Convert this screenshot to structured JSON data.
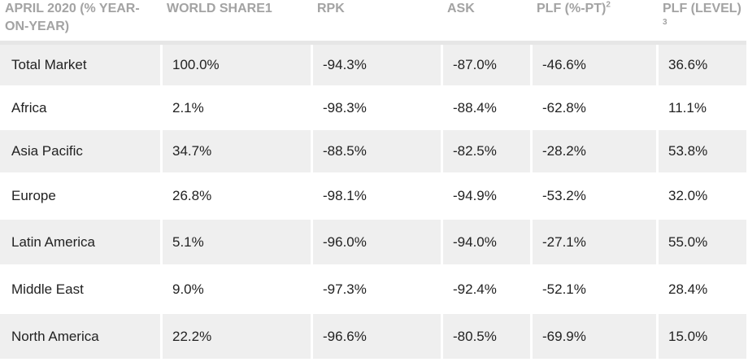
{
  "table": {
    "headers": [
      "APRIL 2020 (% YEAR-ON-YEAR)",
      "WORLD SHARE1",
      "RPK",
      "ASK",
      "PLF (%-PT)",
      "PLF (LEVEL)"
    ],
    "header_superscripts": {
      "plf_pt": "2",
      "plf_level": "3"
    },
    "rows": [
      [
        "Total Market",
        "100.0%",
        "-94.3%",
        "-87.0%",
        "-46.6%",
        "36.6%"
      ],
      [
        "Africa",
        "2.1%",
        "-98.3%",
        "-88.4%",
        "-62.8%",
        "11.1%"
      ],
      [
        "Asia Pacific",
        "34.7%",
        "-88.5%",
        "-82.5%",
        "-28.2%",
        "53.8%"
      ],
      [
        "Europe",
        "26.8%",
        "-98.1%",
        "-94.9%",
        "-53.2%",
        "32.0%"
      ],
      [
        "Latin America",
        "5.1%",
        "-96.0%",
        "-94.0%",
        "-27.1%",
        "55.0%"
      ],
      [
        "Middle East",
        "9.0%",
        "-97.3%",
        "-92.4%",
        "-52.1%",
        "28.4%"
      ],
      [
        "North America",
        "22.2%",
        "-96.6%",
        "-80.5%",
        "-69.9%",
        "15.0%"
      ]
    ]
  },
  "colors": {
    "header_text": "#a3a3a3",
    "row_shade": "#efefef",
    "body_text": "#222222"
  }
}
